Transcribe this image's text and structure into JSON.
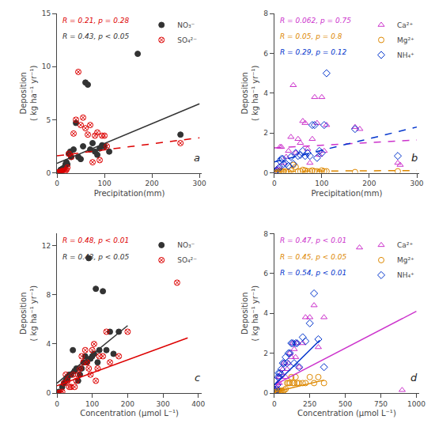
{
  "chart_data": [
    {
      "type": "scatter",
      "xlabel": "Precipitation(mm)",
      "ylabel": "Deposition\n( kg ha⁻¹ yr⁻¹)",
      "xlim": [
        0,
        305
      ],
      "ylim": [
        0,
        15
      ],
      "xticks": [
        0,
        100,
        200,
        300
      ],
      "yticks": [
        0,
        5,
        10,
        15
      ],
      "grid": false,
      "legend": "upper right",
      "label": "a",
      "series": [
        {
          "name": "NO₃⁻",
          "color": "#333333",
          "marker": "circle",
          "x": [
            3,
            5,
            7,
            8,
            10,
            12,
            15,
            18,
            20,
            22,
            25,
            28,
            30,
            35,
            40,
            45,
            50,
            55,
            60,
            65,
            70,
            75,
            80,
            85,
            90,
            95,
            100,
            110,
            170,
            260
          ],
          "values": [
            0.05,
            0.1,
            0.2,
            0.3,
            0.2,
            0.4,
            0.5,
            0.8,
            1.0,
            0.8,
            1.8,
            2.0,
            1.5,
            2.2,
            4.7,
            1.5,
            1.3,
            2.5,
            8.5,
            8.3,
            2.2,
            2.8,
            2.0,
            1.7,
            2.3,
            2.6,
            2.5,
            2.0,
            11.2,
            3.6
          ]
        },
        {
          "name": "SO₄²⁻",
          "color": "#dd0000",
          "marker": "circle-x-open",
          "x": [
            3,
            5,
            7,
            8,
            10,
            12,
            15,
            18,
            20,
            22,
            25,
            30,
            35,
            40,
            45,
            50,
            55,
            60,
            65,
            70,
            75,
            80,
            85,
            90,
            95,
            100,
            105,
            260
          ],
          "values": [
            0.05,
            0.05,
            0.1,
            0.1,
            0.1,
            0.2,
            0.15,
            0.2,
            0.3,
            0.5,
            1.8,
            1.5,
            3.7,
            5.0,
            9.5,
            4.5,
            5.2,
            4.2,
            3.6,
            4.5,
            1.0,
            3.5,
            3.8,
            1.2,
            3.5,
            3.5,
            2.5,
            2.8
          ]
        },
        {
          "type": "line",
          "color": "#333333",
          "line_style": "solid",
          "x": [
            0,
            300
          ],
          "values": [
            0.9,
            6.5
          ]
        },
        {
          "type": "line",
          "color": "#dd0000",
          "line_style": "dashed",
          "x": [
            0,
            300
          ],
          "values": [
            1.6,
            3.3
          ]
        }
      ],
      "annotations": [
        {
          "text": "R = 0.21, p = 0.28",
          "color": "#dd0000"
        },
        {
          "text": "R = 0.43, p < 0.05",
          "color": "#333333"
        }
      ]
    },
    {
      "type": "scatter",
      "xlabel": "Precipitation(mm)",
      "ylabel": "Deposition\n( kg ha⁻¹ yr⁻¹)",
      "xlim": [
        0,
        305
      ],
      "ylim": [
        0,
        8
      ],
      "xticks": [
        0,
        100,
        200,
        300
      ],
      "yticks": [
        0,
        2,
        4,
        6,
        8
      ],
      "grid": false,
      "legend": "upper right",
      "label": "b",
      "series": [
        {
          "name": "Ca²⁺",
          "color": "#cc33cc",
          "marker": "triangle-up-open",
          "x": [
            2,
            5,
            8,
            10,
            12,
            15,
            20,
            25,
            30,
            35,
            40,
            45,
            50,
            55,
            60,
            65,
            70,
            75,
            80,
            85,
            90,
            95,
            100,
            105,
            110,
            170,
            180,
            260,
            265
          ],
          "values": [
            0.1,
            0.2,
            0.15,
            0.3,
            1.3,
            1.3,
            0.5,
            0.8,
            1.1,
            1.8,
            4.4,
            1.0,
            1.7,
            1.5,
            2.6,
            2.5,
            1.2,
            0.5,
            1.7,
            3.8,
            2.5,
            0.9,
            3.8,
            1.1,
            2.4,
            2.3,
            2.2,
            0.5,
            0.4
          ]
        },
        {
          "name": "Mg²⁺",
          "color": "#dd8800",
          "marker": "circle-open",
          "x": [
            2,
            5,
            8,
            10,
            12,
            15,
            18,
            20,
            25,
            30,
            35,
            40,
            45,
            50,
            55,
            60,
            65,
            70,
            75,
            80,
            85,
            90,
            95,
            100,
            105,
            110,
            170,
            260
          ],
          "values": [
            0.02,
            0.03,
            0.04,
            0.06,
            0.08,
            0.08,
            0.08,
            0.06,
            0.08,
            0.04,
            0.12,
            0.4,
            0.3,
            0.08,
            0.08,
            0.15,
            0.12,
            0.08,
            0.08,
            0.12,
            0.08,
            0.08,
            0.04,
            0.12,
            0.08,
            0.08,
            0.04,
            0.08
          ]
        },
        {
          "name": "NH₄⁺",
          "color": "#0033cc",
          "marker": "diamond-open",
          "x": [
            2,
            5,
            8,
            10,
            12,
            15,
            18,
            20,
            25,
            30,
            35,
            40,
            45,
            50,
            55,
            60,
            65,
            70,
            75,
            80,
            85,
            90,
            95,
            100,
            105,
            110,
            170,
            260
          ],
          "values": [
            0.08,
            0.12,
            0.18,
            0.25,
            0.6,
            0.7,
            0.7,
            0.45,
            0.45,
            0.35,
            0.8,
            0.45,
            1.0,
            0.85,
            0.9,
            1.1,
            0.85,
            1.0,
            0.85,
            2.4,
            2.4,
            0.75,
            1.1,
            1.0,
            2.4,
            5.0,
            2.2,
            0.85
          ]
        },
        {
          "type": "line",
          "color": "#cc33cc",
          "line_style": "dashed",
          "x": [
            0,
            300
          ],
          "values": [
            1.25,
            1.65
          ]
        },
        {
          "type": "line",
          "color": "#dd8800",
          "line_style": "dashed",
          "x": [
            0,
            300
          ],
          "values": [
            0.08,
            0.12
          ]
        },
        {
          "type": "line",
          "color": "#0033cc",
          "line_style": "dashed",
          "x": [
            0,
            300
          ],
          "values": [
            0.55,
            2.3
          ]
        }
      ],
      "annotations": [
        {
          "text": "R = 0.062, p = 0.75",
          "color": "#cc33cc"
        },
        {
          "text": "R = 0.05, p = 0.8",
          "color": "#dd8800"
        },
        {
          "text": "R = 0.29, p = 0.12",
          "color": "#0033cc"
        }
      ]
    },
    {
      "type": "scatter",
      "xlabel": "Concentration (μmol L⁻¹)",
      "ylabel": "Deposition\n( kg ha⁻¹ yr⁻¹)",
      "xlim": [
        0,
        410
      ],
      "ylim": [
        0,
        13
      ],
      "xticks": [
        0,
        100,
        200,
        300,
        400
      ],
      "yticks": [
        0,
        4,
        8,
        12
      ],
      "grid": false,
      "legend": "upper right",
      "label": "c",
      "series": [
        {
          "name": "NO₃⁻",
          "color": "#333333",
          "marker": "circle",
          "x": [
            5,
            15,
            20,
            25,
            30,
            35,
            40,
            45,
            50,
            55,
            60,
            65,
            70,
            75,
            80,
            85,
            90,
            95,
            100,
            105,
            110,
            115,
            120,
            130,
            140,
            150,
            160,
            175
          ],
          "values": [
            0.1,
            0.5,
            0.8,
            1.0,
            1.2,
            1.5,
            1.5,
            3.5,
            1.8,
            2.0,
            1.0,
            1.5,
            2.0,
            2.5,
            3.0,
            2.5,
            11.0,
            2.8,
            3.0,
            3.2,
            8.5,
            2.5,
            3.5,
            8.3,
            3.5,
            5.0,
            3.2,
            5.0
          ]
        },
        {
          "name": "SO₄²⁻",
          "color": "#dd0000",
          "marker": "circle-x-open",
          "x": [
            5,
            10,
            15,
            20,
            25,
            30,
            35,
            40,
            45,
            50,
            55,
            60,
            65,
            70,
            75,
            80,
            85,
            90,
            95,
            100,
            105,
            110,
            115,
            120,
            130,
            140,
            150,
            175,
            200,
            340
          ],
          "values": [
            0.0,
            0.05,
            0.1,
            0.8,
            1.5,
            1.0,
            0.5,
            0.5,
            1.5,
            0.5,
            1.0,
            1.5,
            2.0,
            3.0,
            2.5,
            3.5,
            2.5,
            2.0,
            1.5,
            3.5,
            4.0,
            1.0,
            2.0,
            3.0,
            3.0,
            5.0,
            2.5,
            3.0,
            5.0,
            9.0
          ]
        },
        {
          "type": "line",
          "color": "#333333",
          "line_style": "solid",
          "x": [
            0,
            200
          ],
          "values": [
            0.8,
            5.5
          ]
        },
        {
          "type": "line",
          "color": "#dd0000",
          "line_style": "solid",
          "x": [
            0,
            370
          ],
          "values": [
            0.6,
            4.5
          ]
        }
      ],
      "annotations": [
        {
          "text": "R = 0.48, p < 0.01",
          "color": "#dd0000"
        },
        {
          "text": "R = 0.43, p < 0.05",
          "color": "#333333"
        }
      ]
    },
    {
      "type": "scatter",
      "xlabel": "Concentration (μmol L⁻¹)",
      "ylabel": "Deposition\n( kg ha⁻¹ yr⁻¹)",
      "xlim": [
        0,
        1020
      ],
      "ylim": [
        0,
        8
      ],
      "xticks": [
        0,
        250,
        500,
        750,
        1000
      ],
      "yticks": [
        0,
        2,
        4,
        6,
        8
      ],
      "grid": false,
      "legend": "upper right",
      "label": "d",
      "series": [
        {
          "name": "Ca²⁺",
          "color": "#cc33cc",
          "marker": "triangle-up-open",
          "x": [
            5,
            10,
            15,
            20,
            25,
            30,
            35,
            40,
            50,
            60,
            70,
            80,
            90,
            100,
            110,
            120,
            130,
            140,
            150,
            160,
            175,
            200,
            220,
            250,
            280,
            310,
            350,
            600,
            900
          ],
          "values": [
            0.1,
            0.15,
            0.2,
            0.3,
            0.5,
            0.8,
            0.5,
            0.8,
            1.0,
            1.2,
            1.5,
            0.8,
            1.2,
            1.5,
            2.0,
            1.8,
            2.5,
            2.2,
            1.8,
            2.5,
            1.3,
            2.5,
            3.8,
            3.8,
            4.4,
            2.3,
            3.8,
            7.3,
            0.15
          ]
        },
        {
          "name": "Mg²⁺",
          "color": "#dd8800",
          "marker": "circle-open",
          "x": [
            5,
            10,
            15,
            20,
            25,
            30,
            35,
            40,
            50,
            60,
            70,
            80,
            90,
            100,
            110,
            120,
            130,
            140,
            150,
            160,
            175,
            200,
            220,
            250,
            280,
            310,
            350
          ],
          "values": [
            0.02,
            0.03,
            0.05,
            0.08,
            0.1,
            0.12,
            0.08,
            0.1,
            0.12,
            0.1,
            0.15,
            0.2,
            0.5,
            0.5,
            0.5,
            0.8,
            0.5,
            0.5,
            0.8,
            0.5,
            0.5,
            0.5,
            0.5,
            0.8,
            0.5,
            0.8,
            0.5
          ]
        },
        {
          "name": "NH₄⁺",
          "color": "#0033cc",
          "marker": "diamond-open",
          "x": [
            5,
            10,
            15,
            20,
            25,
            30,
            35,
            40,
            50,
            60,
            70,
            80,
            90,
            100,
            110,
            120,
            130,
            140,
            150,
            160,
            175,
            200,
            220,
            250,
            280,
            310,
            350
          ],
          "values": [
            0.05,
            0.1,
            0.2,
            0.4,
            0.8,
            1.0,
            0.8,
            1.0,
            1.2,
            1.5,
            1.5,
            1.8,
            1.5,
            2.0,
            2.0,
            2.5,
            2.5,
            1.5,
            2.5,
            2.5,
            1.3,
            2.8,
            2.6,
            3.5,
            5.0,
            2.7,
            1.3
          ]
        },
        {
          "type": "line",
          "color": "#cc33cc",
          "line_style": "solid",
          "x": [
            0,
            1000
          ],
          "values": [
            0.4,
            4.1
          ]
        },
        {
          "type": "line",
          "color": "#dd8800",
          "line_style": "solid",
          "x": [
            0,
            350
          ],
          "values": [
            0.05,
            0.65
          ]
        },
        {
          "type": "line",
          "color": "#0033cc",
          "line_style": "solid",
          "x": [
            0,
            320
          ],
          "values": [
            0.4,
            2.65
          ]
        }
      ],
      "annotations": [
        {
          "text": "R = 0.47, p < 0.01",
          "color": "#cc33cc"
        },
        {
          "text": "R = 0.45, p < 0.05",
          "color": "#dd8800"
        },
        {
          "text": "R = 0.54, p < 0.01",
          "color": "#0033cc"
        }
      ]
    }
  ]
}
